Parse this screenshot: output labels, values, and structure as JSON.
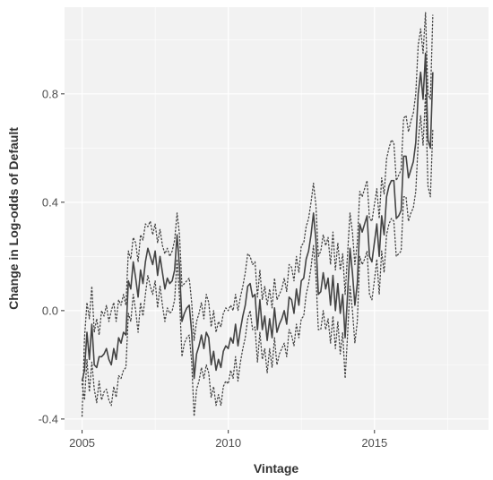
{
  "chart_data": {
    "type": "line",
    "xlabel": "Vintage",
    "ylabel": "Change in Log-odds of Default",
    "xlim": [
      2004.4,
      2018.9
    ],
    "ylim": [
      -0.44,
      1.12
    ],
    "x_ticks": [
      2005,
      2010,
      2015
    ],
    "x_tick_labels": [
      "2005",
      "2010",
      "2015"
    ],
    "y_ticks": [
      -0.4,
      0.0,
      0.4,
      0.8
    ],
    "y_tick_labels": [
      "-0.4",
      "0.0",
      "0.4",
      "0.8"
    ],
    "grid": true,
    "legend": "none",
    "colors": {
      "panel": "#f2f2f2",
      "grid": "#ffffff",
      "line": "#444444"
    },
    "x_start": 2005.0,
    "x_step": 0.0833,
    "series": [
      {
        "style": "solid",
        "values": [
          -0.26,
          -0.22,
          -0.08,
          -0.18,
          -0.05,
          -0.2,
          -0.21,
          -0.17,
          -0.17,
          -0.16,
          -0.14,
          -0.18,
          -0.2,
          -0.14,
          -0.18,
          -0.1,
          -0.12,
          -0.08,
          -0.09,
          0.11,
          0.08,
          0.18,
          0.12,
          0.05,
          0.15,
          0.1,
          0.18,
          0.23,
          0.2,
          0.17,
          0.22,
          0.13,
          0.2,
          0.14,
          0.08,
          0.12,
          0.1,
          0.11,
          0.15,
          0.28,
          0.16,
          -0.04,
          -0.01,
          0.01,
          0.02,
          -0.08,
          -0.25,
          -0.16,
          -0.13,
          -0.09,
          -0.14,
          -0.08,
          -0.1,
          -0.2,
          -0.15,
          -0.22,
          -0.18,
          -0.21,
          -0.15,
          -0.13,
          -0.14,
          -0.1,
          -0.12,
          -0.05,
          -0.13,
          -0.07,
          -0.02,
          0.02,
          0.09,
          0.1,
          0.05,
          0.06,
          -0.07,
          0.04,
          -0.07,
          -0.02,
          -0.11,
          -0.03,
          -0.1,
          0.01,
          -0.08,
          -0.05,
          -0.03,
          0.0,
          -0.05,
          0.05,
          0.04,
          -0.01,
          0.08,
          0.02,
          0.11,
          0.12,
          0.19,
          0.22,
          0.28,
          0.36,
          0.26,
          0.06,
          0.07,
          0.14,
          0.08,
          0.12,
          0.02,
          0.13,
          0.0,
          0.1,
          -0.01,
          0.06,
          -0.1,
          0.06,
          0.23,
          0.14,
          0.02,
          0.1,
          0.32,
          0.29,
          0.32,
          0.35,
          0.2,
          0.18,
          0.25,
          0.32,
          0.2,
          0.35,
          0.28,
          0.42,
          0.46,
          0.48,
          0.48,
          0.34,
          0.35,
          0.37,
          0.57,
          0.57,
          0.49,
          0.52,
          0.55,
          0.62,
          0.8,
          0.88,
          0.78,
          0.95,
          0.63,
          0.6,
          0.88
        ]
      },
      {
        "style": "dotted",
        "values": [
          -0.39,
          -0.1,
          0.03,
          -0.03,
          0.09,
          -0.08,
          -0.03,
          -0.09,
          0.0,
          -0.02,
          0.02,
          -0.04,
          0.0,
          0.03,
          -0.04,
          0.04,
          0.02,
          0.06,
          0.02,
          0.22,
          0.19,
          0.27,
          0.25,
          0.18,
          0.28,
          0.26,
          0.32,
          0.31,
          0.33,
          0.28,
          0.32,
          0.25,
          0.3,
          0.24,
          0.21,
          0.23,
          0.2,
          0.22,
          0.26,
          0.36,
          0.28,
          0.09,
          0.1,
          0.11,
          0.12,
          0.03,
          -0.11,
          -0.04,
          -0.01,
          0.03,
          -0.03,
          0.06,
          0.03,
          -0.06,
          0.0,
          -0.08,
          -0.04,
          -0.06,
          -0.01,
          0.01,
          0.0,
          0.02,
          0.0,
          0.06,
          0.0,
          0.05,
          0.09,
          0.14,
          0.21,
          0.2,
          0.17,
          0.18,
          0.05,
          0.15,
          0.04,
          0.09,
          0.02,
          0.08,
          0.01,
          0.12,
          0.04,
          0.06,
          0.08,
          0.12,
          0.07,
          0.17,
          0.16,
          0.11,
          0.2,
          0.14,
          0.24,
          0.25,
          0.31,
          0.34,
          0.4,
          0.47,
          0.39,
          0.2,
          0.22,
          0.28,
          0.24,
          0.27,
          0.17,
          0.29,
          0.15,
          0.25,
          0.15,
          0.21,
          0.06,
          0.21,
          0.36,
          0.29,
          0.17,
          0.25,
          0.44,
          0.42,
          0.45,
          0.48,
          0.34,
          0.33,
          0.39,
          0.45,
          0.34,
          0.49,
          0.43,
          0.56,
          0.6,
          0.63,
          0.62,
          0.48,
          0.5,
          0.52,
          0.71,
          0.72,
          0.66,
          0.7,
          0.73,
          0.8,
          0.98,
          1.04,
          0.95,
          1.1,
          0.8,
          0.78,
          1.09
        ]
      },
      {
        "style": "dotted",
        "values": [
          -0.27,
          -0.33,
          -0.18,
          -0.3,
          -0.19,
          -0.29,
          -0.34,
          -0.26,
          -0.33,
          -0.3,
          -0.29,
          -0.33,
          -0.35,
          -0.28,
          -0.32,
          -0.24,
          -0.25,
          -0.22,
          -0.21,
          -0.01,
          -0.04,
          0.06,
          0.0,
          -0.08,
          0.03,
          -0.02,
          0.06,
          0.13,
          0.09,
          0.06,
          0.11,
          0.01,
          0.09,
          0.02,
          -0.04,
          0.01,
          -0.01,
          0.0,
          0.04,
          0.19,
          0.05,
          -0.17,
          -0.12,
          -0.1,
          -0.09,
          -0.19,
          -0.39,
          -0.29,
          -0.26,
          -0.21,
          -0.25,
          -0.2,
          -0.23,
          -0.32,
          -0.28,
          -0.35,
          -0.31,
          -0.35,
          -0.28,
          -0.26,
          -0.27,
          -0.22,
          -0.25,
          -0.17,
          -0.26,
          -0.19,
          -0.14,
          -0.1,
          -0.03,
          0.0,
          -0.07,
          -0.06,
          -0.19,
          -0.08,
          -0.18,
          -0.14,
          -0.23,
          -0.14,
          -0.21,
          -0.1,
          -0.2,
          -0.16,
          -0.14,
          -0.12,
          -0.17,
          -0.07,
          -0.09,
          -0.13,
          -0.05,
          -0.1,
          -0.03,
          -0.02,
          0.06,
          0.1,
          0.16,
          0.24,
          0.13,
          -0.07,
          -0.07,
          0.0,
          -0.07,
          -0.03,
          -0.12,
          -0.02,
          -0.14,
          -0.04,
          -0.16,
          -0.08,
          -0.25,
          -0.09,
          0.09,
          0.0,
          -0.12,
          -0.04,
          0.2,
          0.17,
          0.19,
          0.22,
          0.06,
          0.04,
          0.11,
          0.19,
          0.06,
          0.22,
          0.14,
          0.28,
          0.32,
          0.34,
          0.33,
          0.2,
          0.21,
          0.22,
          0.42,
          0.42,
          0.33,
          0.36,
          0.38,
          0.44,
          0.62,
          0.72,
          0.61,
          0.8,
          0.46,
          0.42,
          0.67
        ]
      }
    ]
  }
}
